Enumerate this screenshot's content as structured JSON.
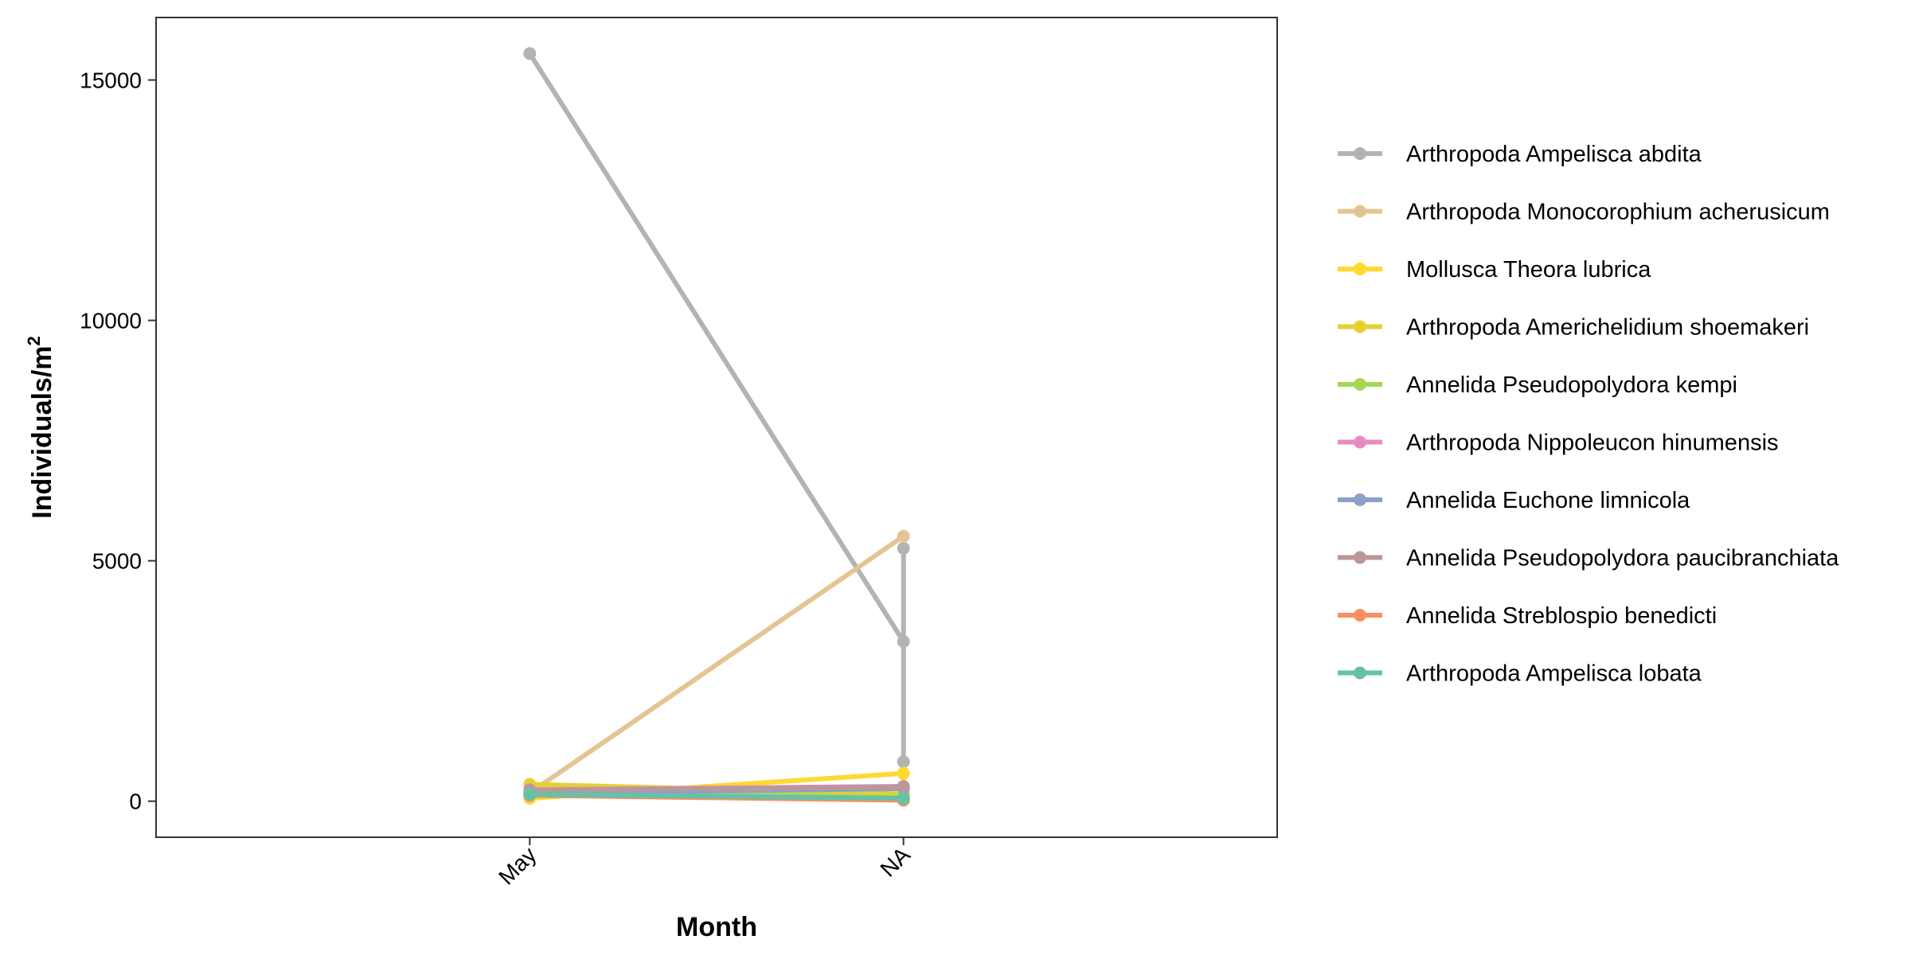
{
  "chart_data": {
    "type": "line",
    "xlabel": "Month",
    "ylabel": "Individuals/m",
    "ylabel_superscript": "2",
    "categories": [
      "May",
      "NA"
    ],
    "y_ticks": [
      0,
      5000,
      10000,
      15000
    ],
    "ylim": [
      -750,
      16300
    ],
    "grid": false,
    "legend_position": "right",
    "series": [
      {
        "name": "Arthropoda Ampelisca abdita",
        "color": "#b3b3b3",
        "points": [
          [
            "May",
            15550
          ],
          [
            "NA",
            3320
          ],
          [
            "NA",
            5260
          ],
          [
            "NA",
            820
          ]
        ]
      },
      {
        "name": "Arthropoda Monocorophium acherusicum",
        "color": "#e5c494",
        "points": [
          [
            "May",
            170
          ],
          [
            "NA",
            5510
          ]
        ]
      },
      {
        "name": "Mollusca Theora lubrica",
        "color": "#ffd92f",
        "points": [
          [
            "May",
            60
          ],
          [
            "NA",
            580
          ],
          [
            "NA",
            90
          ]
        ]
      },
      {
        "name": "Arthropoda Americhelidium shoemakeri",
        "color": "#e6d02f",
        "points": [
          [
            "May",
            350
          ],
          [
            "NA",
            150
          ]
        ]
      },
      {
        "name": "Annelida Pseudopolydora kempi",
        "color": "#a6d854",
        "points": [
          [
            "May",
            200
          ],
          [
            "NA",
            80
          ]
        ]
      },
      {
        "name": "Arthropoda Nippoleucon hinumensis",
        "color": "#e78ac3",
        "points": [
          [
            "May",
            240
          ],
          [
            "NA",
            310
          ]
        ]
      },
      {
        "name": "Annelida Euchone limnicola",
        "color": "#8da0cb",
        "points": [
          [
            "May",
            160
          ],
          [
            "NA",
            260
          ]
        ]
      },
      {
        "name": "Annelida Pseudopolydora paucibranchiata",
        "color": "#b8989b",
        "points": [
          [
            "May",
            230
          ],
          [
            "NA",
            290
          ]
        ]
      },
      {
        "name": "Annelida Streblospio benedicti",
        "color": "#fc8d62",
        "points": [
          [
            "May",
            120
          ],
          [
            "NA",
            20
          ]
        ]
      },
      {
        "name": "Arthropoda Ampelisca lobata",
        "color": "#66c2a5",
        "points": [
          [
            "May",
            140
          ],
          [
            "NA",
            60
          ]
        ]
      }
    ]
  }
}
